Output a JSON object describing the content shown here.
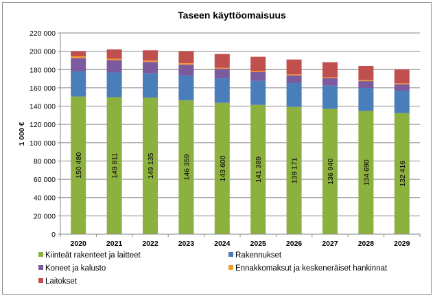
{
  "chart_data": {
    "type": "bar",
    "stacked": true,
    "title": "Taseen käyttöomaisuus",
    "ylabel": "1 000 €",
    "xlabel": "",
    "ylim": [
      0,
      220000
    ],
    "yticks": [
      0,
      20000,
      40000,
      60000,
      80000,
      100000,
      120000,
      140000,
      160000,
      180000,
      200000,
      220000
    ],
    "ytick_labels": [
      "0",
      "20 000",
      "40 000",
      "60 000",
      "80 000",
      "100 000",
      "120 000",
      "140 000",
      "160 000",
      "180 000",
      "200 000",
      "220 000"
    ],
    "grid": true,
    "legend_position": "bottom",
    "categories": [
      "2020",
      "2021",
      "2022",
      "2023",
      "2024",
      "2025",
      "2026",
      "2027",
      "2028",
      "2029"
    ],
    "series": [
      {
        "name": "Kiinteät rakenteet ja laitteet",
        "color": "#8db13e",
        "values": [
          150480,
          149811,
          149135,
          146359,
          143600,
          141389,
          139171,
          136940,
          134690,
          132416
        ],
        "data_labels": [
          "150 480",
          "149 811",
          "149 135",
          "146 359",
          "143 600",
          "141 389",
          "139 171",
          "136 940",
          "134 690",
          "132 416"
        ]
      },
      {
        "name": "Rakennukset",
        "color": "#4a7ebb",
        "values": [
          27500,
          27000,
          26700,
          27000,
          26800,
          26300,
          26000,
          25500,
          25200,
          24500
        ]
      },
      {
        "name": "Koneet ja kalusto",
        "color": "#7c5a9e",
        "values": [
          14500,
          13500,
          12500,
          12000,
          10500,
          9500,
          8500,
          8000,
          7500,
          7000
        ]
      },
      {
        "name": "Ennakkomaksut ja keskeneräiset hankinnat",
        "color": "#f59a31",
        "values": [
          2000,
          1500,
          1500,
          1500,
          1000,
          1000,
          1000,
          1000,
          1000,
          1000
        ]
      },
      {
        "name": "Laitokset",
        "color": "#c0504d",
        "values": [
          5500,
          10200,
          11200,
          13100,
          15100,
          15800,
          16300,
          16600,
          15600,
          15300
        ]
      }
    ]
  }
}
